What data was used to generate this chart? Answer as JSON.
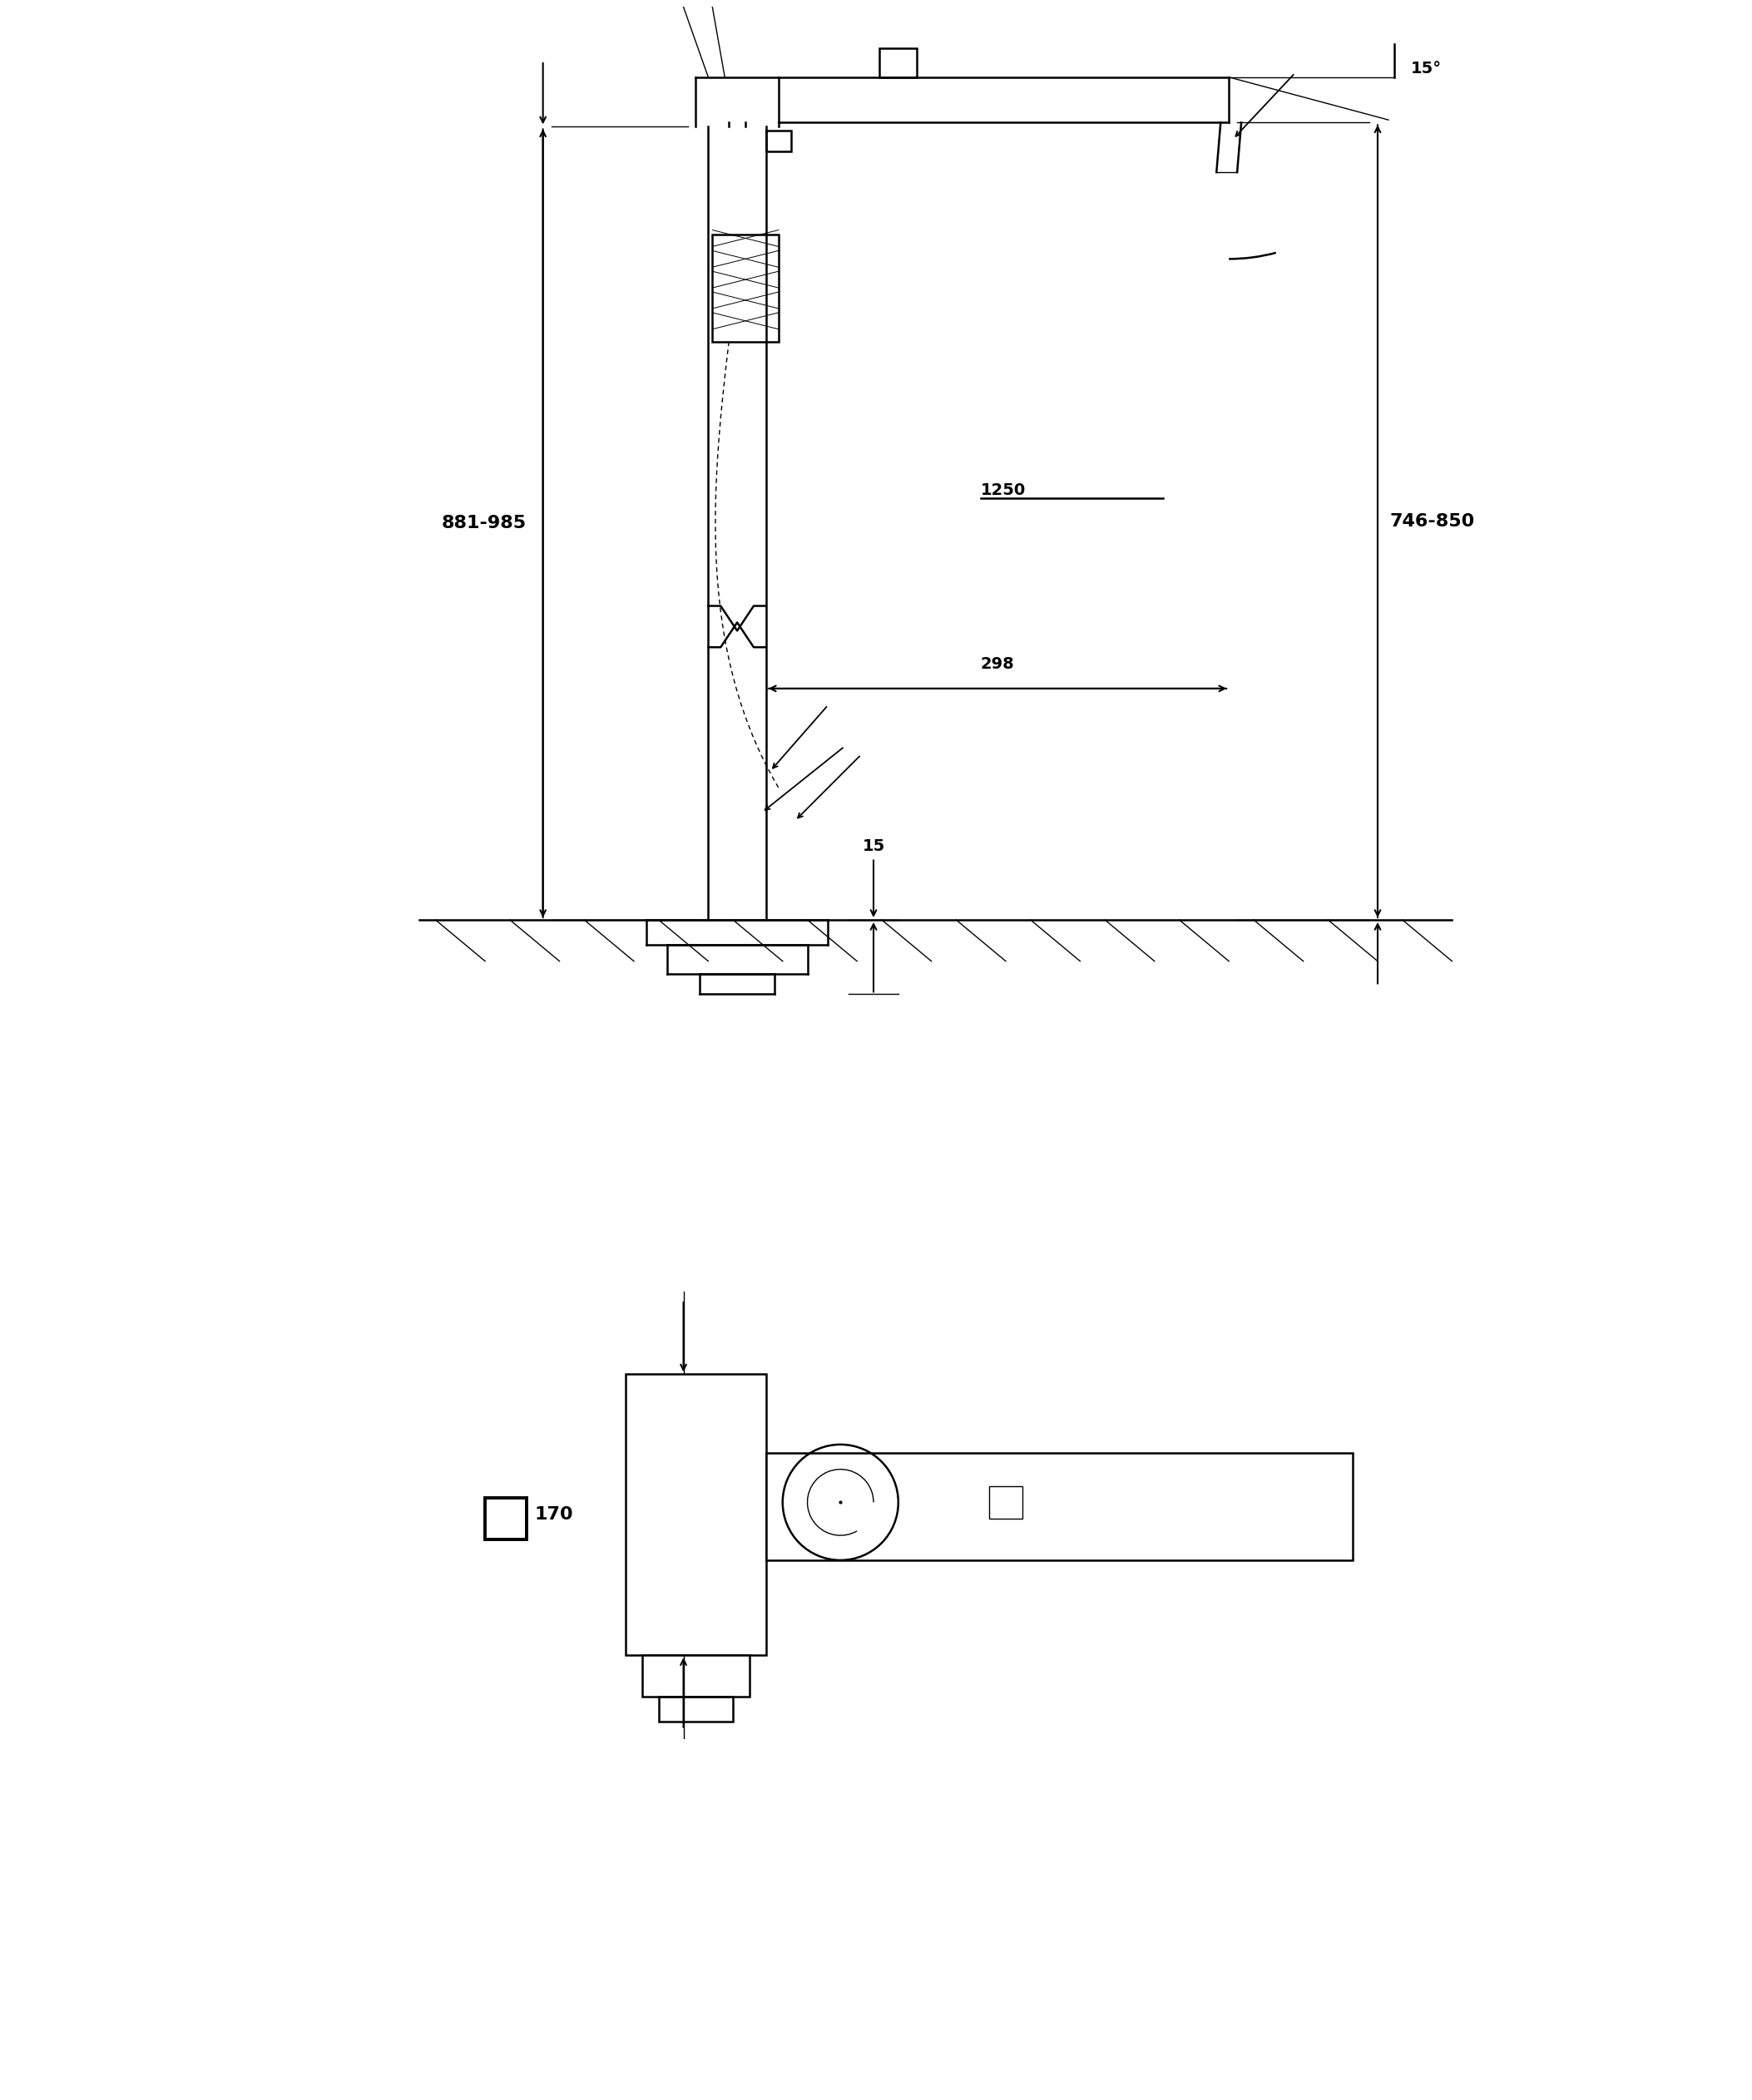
{
  "bg_color": "#ffffff",
  "line_color": "#000000",
  "lw_thin": 1.0,
  "lw_medium": 1.8,
  "lw_thick": 2.8,
  "fig_width": 21.06,
  "fig_height": 25.25,
  "dim_881_985": "881-985",
  "dim_746_850": "746-850",
  "dim_298": "298",
  "dim_1250": "1250",
  "dim_15deg": "15°",
  "dim_15": "15",
  "dim_170": "170"
}
